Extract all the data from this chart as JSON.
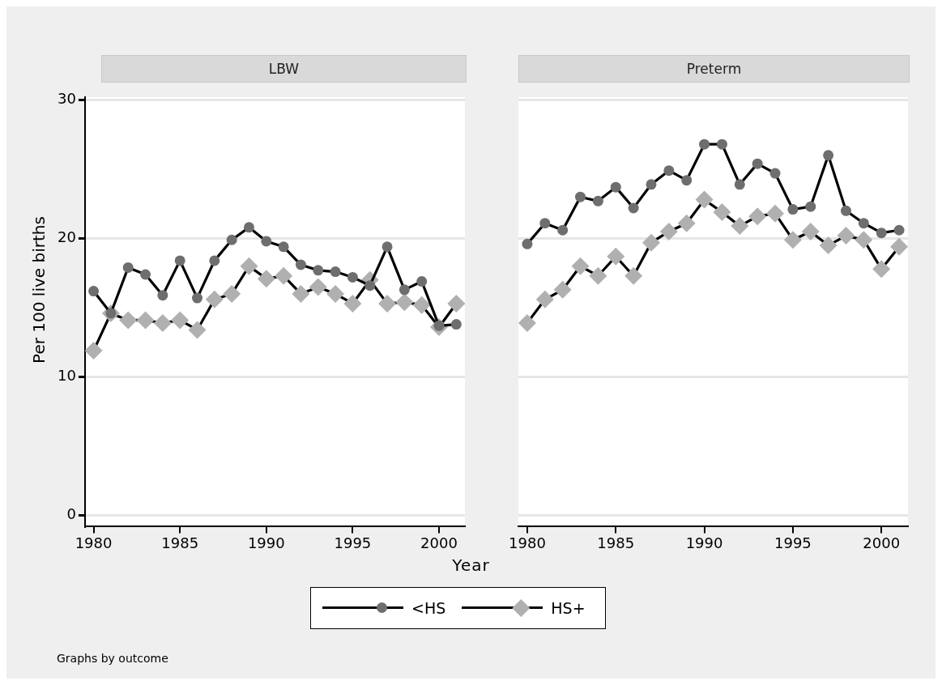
{
  "chart_data": [
    {
      "type": "line",
      "title": "LBW",
      "xlabel": "Year",
      "ylabel": "Per 100 live births",
      "legend": "bottom",
      "grid": "y",
      "line_style": "solid",
      "annotations": [
        "Graphs by outcome"
      ],
      "xlim": [
        1979.5,
        2001.5
      ],
      "xticks": [
        1980,
        1985,
        1990,
        1995,
        2000
      ],
      "ylim": [
        -0.8,
        30.2
      ],
      "yticks": [
        0,
        10,
        20,
        30
      ],
      "x": [
        1980,
        1981,
        1982,
        1983,
        1984,
        1985,
        1986,
        1987,
        1988,
        1989,
        1990,
        1991,
        1992,
        1993,
        1994,
        1995,
        1996,
        1997,
        1998,
        1999,
        2000,
        2001
      ],
      "series": [
        {
          "name": "<HS",
          "color": "#6e6e6e",
          "marker": "circle",
          "values": [
            16.2,
            14.6,
            17.9,
            17.4,
            15.9,
            18.4,
            15.7,
            18.4,
            19.9,
            20.8,
            19.8,
            19.4,
            18.1,
            17.7,
            17.6,
            17.2,
            16.6,
            19.4,
            16.3,
            16.9,
            13.7,
            13.8
          ]
        },
        {
          "name": "HS+",
          "color": "#b0b0b0",
          "marker": "diamond",
          "values": [
            11.9,
            14.6,
            14.1,
            14.1,
            13.9,
            14.1,
            13.4,
            15.6,
            16.0,
            18.0,
            17.1,
            17.3,
            16.0,
            16.5,
            16.0,
            15.3,
            17.0,
            15.3,
            15.4,
            15.2,
            13.6,
            15.3
          ]
        }
      ]
    },
    {
      "type": "line",
      "title": "Preterm",
      "grid": "y",
      "line_style": "solid",
      "tick_labels": "x",
      "xlim": [
        1979.5,
        2001.5
      ],
      "xticks": [
        1980,
        1985,
        1990,
        1995,
        2000
      ],
      "ylim": [
        -0.8,
        30.2
      ],
      "yticks": [
        0,
        10,
        20,
        30
      ],
      "x": [
        1980,
        1981,
        1982,
        1983,
        1984,
        1985,
        1986,
        1987,
        1988,
        1989,
        1990,
        1991,
        1992,
        1993,
        1994,
        1995,
        1996,
        1997,
        1998,
        1999,
        2000,
        2001
      ],
      "series": [
        {
          "color": "#6e6e6e",
          "marker": "circle",
          "values": [
            19.6,
            21.1,
            20.6,
            23.0,
            22.7,
            23.7,
            22.2,
            23.9,
            24.9,
            24.2,
            26.8,
            26.8,
            23.9,
            25.4,
            24.7,
            22.1,
            22.3,
            26.0,
            22.0,
            21.1,
            20.4,
            20.6
          ]
        },
        {
          "color": "#b0b0b0",
          "marker": "diamond",
          "values": [
            13.9,
            15.6,
            16.3,
            18.0,
            17.3,
            18.7,
            17.3,
            19.7,
            20.5,
            21.1,
            22.8,
            21.9,
            20.9,
            21.6,
            21.8,
            19.9,
            20.5,
            19.5,
            20.2,
            19.9,
            17.8,
            19.4
          ]
        }
      ]
    }
  ]
}
